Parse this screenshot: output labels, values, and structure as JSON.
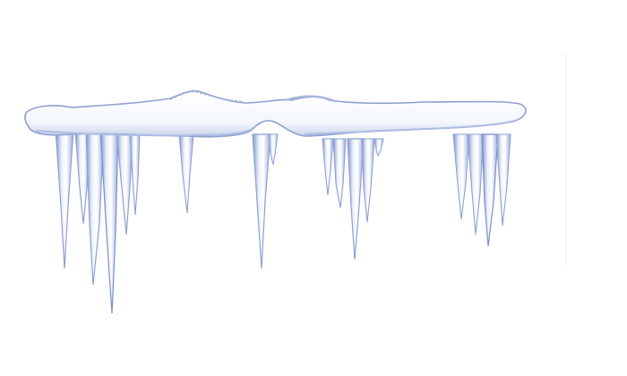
{
  "image": {
    "subject": "icicles",
    "background_color": "#ffffff",
    "snow_color": "#ffffff",
    "snow_shadow_color": "#c7d2ea",
    "outline_color": "#8ea0cf",
    "ice_shadow_color": "#6e83c0",
    "ice_highlight_color": "#eef2fb"
  }
}
